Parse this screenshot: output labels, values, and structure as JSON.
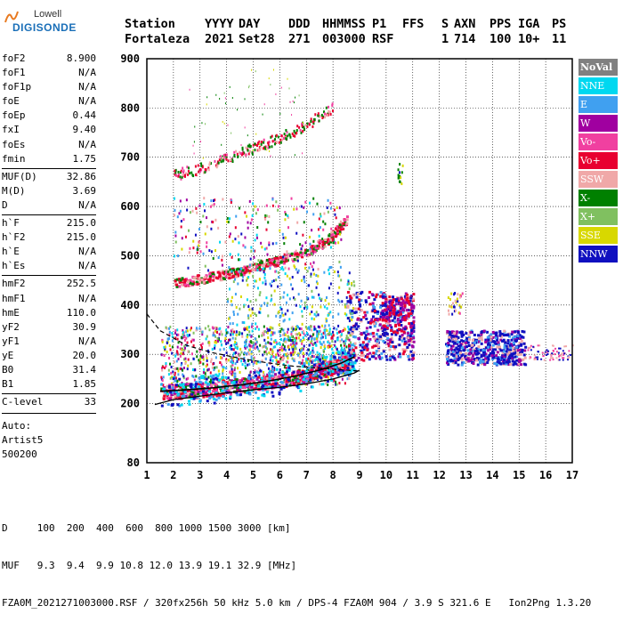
{
  "logo": {
    "line1": "Lowell",
    "line2": "DIGISONDE"
  },
  "header": {
    "labels": [
      "Station",
      "YYYY",
      "DAY",
      "DDD",
      "HHMMSS",
      "P1",
      "FFS",
      "S",
      "AXN",
      "PPS",
      "IGA",
      "PS"
    ],
    "values": [
      "Fortaleza",
      "2021",
      "Set28",
      "271",
      "003000",
      "RSF",
      "",
      "1",
      "714",
      "100",
      "10+",
      "11"
    ]
  },
  "params": {
    "group1": [
      {
        "name": "foF2",
        "value": "8.900"
      },
      {
        "name": "foF1",
        "value": "N/A"
      },
      {
        "name": "foF1p",
        "value": "N/A"
      },
      {
        "name": "foE",
        "value": "N/A"
      },
      {
        "name": "foEp",
        "value": "0.44"
      },
      {
        "name": "fxI",
        "value": "9.40"
      },
      {
        "name": "foEs",
        "value": "N/A"
      },
      {
        "name": "fmin",
        "value": "1.75"
      }
    ],
    "group2": [
      {
        "name": "MUF(D)",
        "value": "32.86"
      },
      {
        "name": "M(D)",
        "value": "3.69"
      },
      {
        "name": "D",
        "value": "N/A"
      }
    ],
    "group3": [
      {
        "name": "h`F",
        "value": "215.0"
      },
      {
        "name": "h`F2",
        "value": "215.0"
      },
      {
        "name": "h`E",
        "value": "N/A"
      },
      {
        "name": "h`Es",
        "value": "N/A"
      }
    ],
    "group4": [
      {
        "name": "hmF2",
        "value": "252.5"
      },
      {
        "name": "hmF1",
        "value": "N/A"
      },
      {
        "name": "hmE",
        "value": "110.0"
      },
      {
        "name": "yF2",
        "value": "30.9"
      },
      {
        "name": "yF1",
        "value": "N/A"
      },
      {
        "name": "yE",
        "value": "20.0"
      },
      {
        "name": "B0",
        "value": "31.4"
      },
      {
        "name": "B1",
        "value": "1.85"
      }
    ],
    "group5": [
      {
        "name": "C-level",
        "value": "33"
      }
    ],
    "auto": [
      "Auto:",
      "Artist5",
      "500200"
    ]
  },
  "legend": [
    {
      "label": "NoVal",
      "color": "#808080"
    },
    {
      "label": "NNE",
      "color": "#00d8f0"
    },
    {
      "label": "E",
      "color": "#40a0f0"
    },
    {
      "label": "W",
      "color": "#a000a0"
    },
    {
      "label": "Vo-",
      "color": "#f040a0"
    },
    {
      "label": "Vo+",
      "color": "#e80030"
    },
    {
      "label": "SSW",
      "color": "#f0a8a8"
    },
    {
      "label": "X-",
      "color": "#008000"
    },
    {
      "label": "X+",
      "color": "#80c060"
    },
    {
      "label": "SSE",
      "color": "#d8d800"
    },
    {
      "label": "NNW",
      "color": "#1010c0"
    }
  ],
  "bottom": {
    "d_line": "D     100  200  400  600  800 1000 1500 3000 [km]",
    "muf_line": "MUF   9.3  9.4  9.9 10.8 12.0 13.9 19.1 32.9 [MHz]",
    "footer": "FZA0M_2021271003000.RSF / 320fx256h 50 kHz 5.0 km / DPS-4 FZA0M 904 / 3.9 S 321.6 E   Ion2Png 1.3.20"
  },
  "chart_data": {
    "type": "scatter",
    "xlim": [
      1,
      17
    ],
    "ylim": [
      80,
      900
    ],
    "x_ticks": [
      "1",
      "2",
      "3",
      "4",
      "5",
      "6",
      "7",
      "8",
      "9",
      "10",
      "11",
      "12",
      "13",
      "14",
      "15",
      "16",
      "17"
    ],
    "y_ticks": [
      "80",
      "200",
      "300",
      "400",
      "500",
      "600",
      "700",
      "800",
      "900"
    ],
    "grid": true,
    "traces": {
      "o_trace_low": [
        [
          1.5,
          225
        ],
        [
          2.5,
          228
        ],
        [
          3.5,
          232
        ],
        [
          4.5,
          238
        ],
        [
          5.5,
          245
        ],
        [
          6.5,
          255
        ],
        [
          7.5,
          268
        ],
        [
          8.3,
          282
        ],
        [
          8.8,
          295
        ]
      ],
      "profile_upper_dashed": [
        [
          1.0,
          382
        ],
        [
          1.5,
          348
        ],
        [
          2.5,
          318
        ],
        [
          3.5,
          303
        ],
        [
          4.5,
          292
        ],
        [
          5.5,
          283
        ],
        [
          6.5,
          276
        ],
        [
          7.5,
          272
        ],
        [
          8.5,
          268
        ],
        [
          9.0,
          266
        ]
      ],
      "profile_lower_solid": [
        [
          1.3,
          198
        ],
        [
          2.0,
          208
        ],
        [
          3.0,
          215
        ],
        [
          4.0,
          222
        ],
        [
          5.0,
          228
        ],
        [
          6.0,
          233
        ],
        [
          7.0,
          240
        ],
        [
          8.0,
          250
        ],
        [
          8.8,
          262
        ],
        [
          9.0,
          268
        ]
      ],
      "second_hop": [
        [
          2.0,
          446
        ],
        [
          3.0,
          455
        ],
        [
          4.0,
          465
        ],
        [
          5.0,
          478
        ],
        [
          6.0,
          493
        ],
        [
          7.0,
          510
        ],
        [
          7.8,
          535
        ],
        [
          8.5,
          575
        ]
      ],
      "third_hop": [
        [
          2.0,
          665
        ],
        [
          3.0,
          680
        ],
        [
          4.0,
          700
        ],
        [
          5.0,
          720
        ],
        [
          6.0,
          742
        ],
        [
          7.0,
          768
        ],
        [
          8.0,
          805
        ]
      ],
      "f_spread": [
        [
          9.2,
          320
        ],
        [
          9.8,
          345
        ],
        [
          10.3,
          370
        ],
        [
          10.8,
          350
        ],
        [
          12.5,
          310
        ],
        [
          13.2,
          300
        ],
        [
          14.0,
          320
        ],
        [
          14.5,
          315
        ],
        [
          15.5,
          305
        ],
        [
          16.5,
          300
        ]
      ]
    }
  }
}
